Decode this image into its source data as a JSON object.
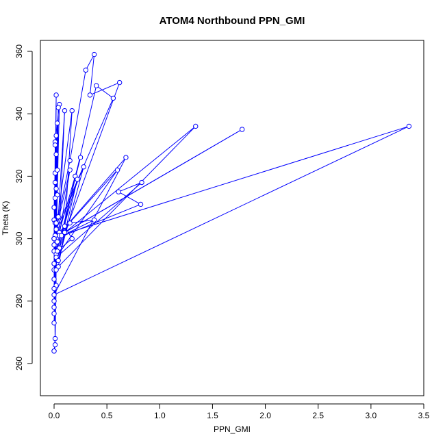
{
  "chart_data": {
    "type": "line",
    "title": "ATOM4 Northbound PPN_GMI",
    "xlabel": "PPN_GMI",
    "ylabel": "Theta (K)",
    "xlim": [
      0,
      3.5
    ],
    "ylim": [
      260,
      360
    ],
    "x_ticks": [
      0.0,
      0.5,
      1.0,
      1.5,
      2.0,
      2.5,
      3.0,
      3.5
    ],
    "x_tick_labels": [
      "0.0",
      "0.5",
      "1.0",
      "1.5",
      "2.0",
      "2.5",
      "3.0",
      "3.5"
    ],
    "y_ticks": [
      260,
      280,
      300,
      320,
      340,
      360
    ],
    "y_tick_labels": [
      "260",
      "280",
      "300",
      "320",
      "340",
      "360"
    ],
    "grid": false,
    "legend": "none",
    "series_color": "#0000ff",
    "series": [
      {
        "x": [
          0.0,
          0.01,
          0.02,
          0.01,
          0.0,
          0.02,
          0.01,
          0.05,
          0.02,
          0.0,
          0.01,
          0.04,
          0.02,
          0.03,
          0.0,
          0.02,
          0.01,
          0.0,
          0.02,
          0.01,
          0.0,
          0.01,
          0.03,
          0.02,
          0.0,
          0.01,
          0.02,
          0.0,
          0.01,
          0.02,
          0.0,
          0.01,
          0.0,
          0.02,
          0.01,
          0.0,
          0.01,
          0.03,
          0.0,
          0.02,
          0.05,
          0.1,
          0.04,
          0.15,
          0.3,
          0.38,
          0.34,
          0.62,
          0.05,
          0.2,
          0.0,
          0.4,
          0.56,
          0.02,
          0.17,
          0.1,
          0.04,
          1.34,
          0.03,
          0.25,
          0.02,
          0.15,
          0.0,
          1.78,
          0.05,
          3.36,
          0.0,
          0.68,
          0.01,
          0.6,
          0.02,
          0.83,
          0.61,
          0.82,
          0.02,
          0.38,
          0.15,
          0.07,
          0.22,
          0.04,
          0.28,
          0.0,
          0.1,
          0.17,
          0.03,
          0.0,
          0.01,
          0.03,
          0.0,
          0.02,
          0.0,
          0.01,
          0.0,
          0.01,
          0.0
        ],
        "y": [
          264,
          268,
          285,
          300,
          306,
          316,
          331,
          343,
          300,
          292,
          305,
          342,
          299,
          337,
          296,
          346,
          300,
          310,
          333,
          301,
          287,
          321,
          322,
          300,
          278,
          330,
          303,
          300,
          318,
          294,
          284,
          300,
          276,
          327,
          298,
          292,
          300,
          314,
          280,
          305,
          302,
          341,
          307,
          325,
          354,
          359,
          346,
          350,
          297,
          320,
          290,
          349,
          345,
          303,
          341,
          302,
          291,
          336,
          300,
          326,
          295,
          322,
          300,
          335,
          301,
          336,
          282,
          326,
          300,
          322,
          294,
          318,
          315,
          311,
          300,
          306,
          305,
          301,
          319,
          293,
          323,
          300,
          304,
          300,
          296,
          300,
          313,
          299,
          273,
          290,
          298,
          301,
          300,
          266,
          264
        ]
      }
    ]
  }
}
